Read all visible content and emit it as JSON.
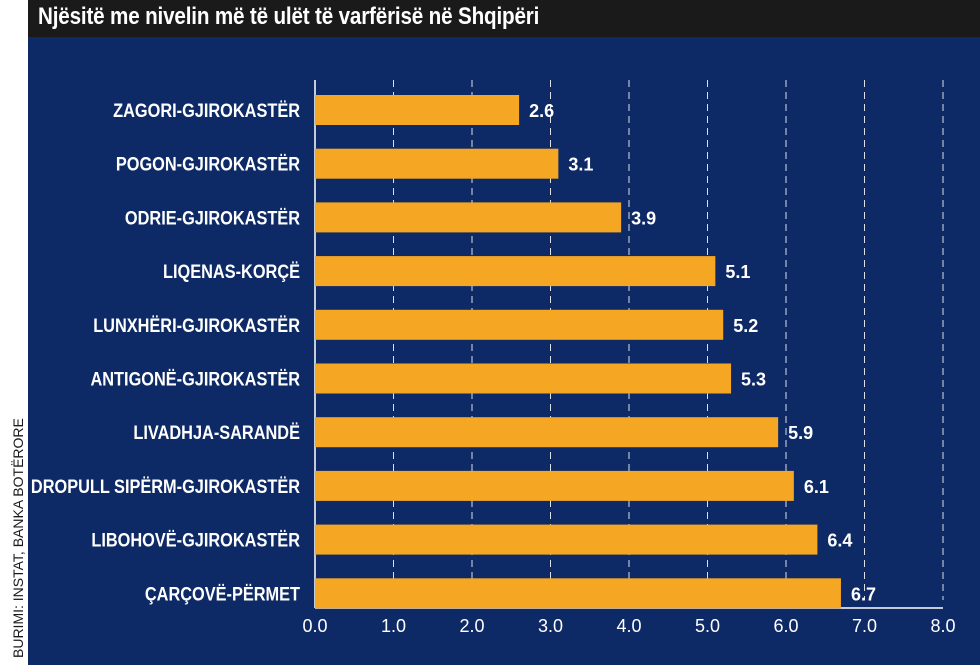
{
  "title": "Njësitë me nivelin më të ulët të varfërisë në Shqipëri",
  "source": "BURIMI: INSTAT, BANKA BOTËRORE",
  "colors": {
    "background": "#0e2a66",
    "bar": "#f5a623",
    "text": "#ffffff",
    "title_bar": "#1a1a1a"
  },
  "chart_data": {
    "type": "bar",
    "orientation": "horizontal",
    "title": "Njësitë me nivelin më të ulët të varfërisë në Shqipëri",
    "categories": [
      "ZAGORI-GJIROKASTËR",
      "POGON-GJIROKASTËR",
      "ODRIE-GJIROKASTËR",
      "LIQENAS-KORÇË",
      "LUNXHËRI-GJIROKASTËR",
      "ANTIGONË-GJIROKASTËR",
      "LIVADHJA-SARANDË",
      "DROPULL SIPËRM-GJIROKASTËR",
      "LIBOHOVË-GJIROKASTËR",
      "ÇARÇOVË-PËRMET"
    ],
    "values": [
      2.6,
      3.1,
      3.9,
      5.1,
      5.2,
      5.3,
      5.9,
      6.1,
      6.4,
      6.7
    ],
    "value_labels": [
      "2.6",
      "3.1",
      "3.9",
      "5.1",
      "5.2",
      "5.3",
      "5.9",
      "6.1",
      "6.4",
      "6.7"
    ],
    "xlim": [
      0,
      8
    ],
    "xticks": [
      "0.0",
      "1.0",
      "2.0",
      "3.0",
      "4.0",
      "5.0",
      "6.0",
      "7.0",
      "8.0"
    ],
    "xlabel": "",
    "ylabel": "",
    "grid": "vertical dashed"
  }
}
